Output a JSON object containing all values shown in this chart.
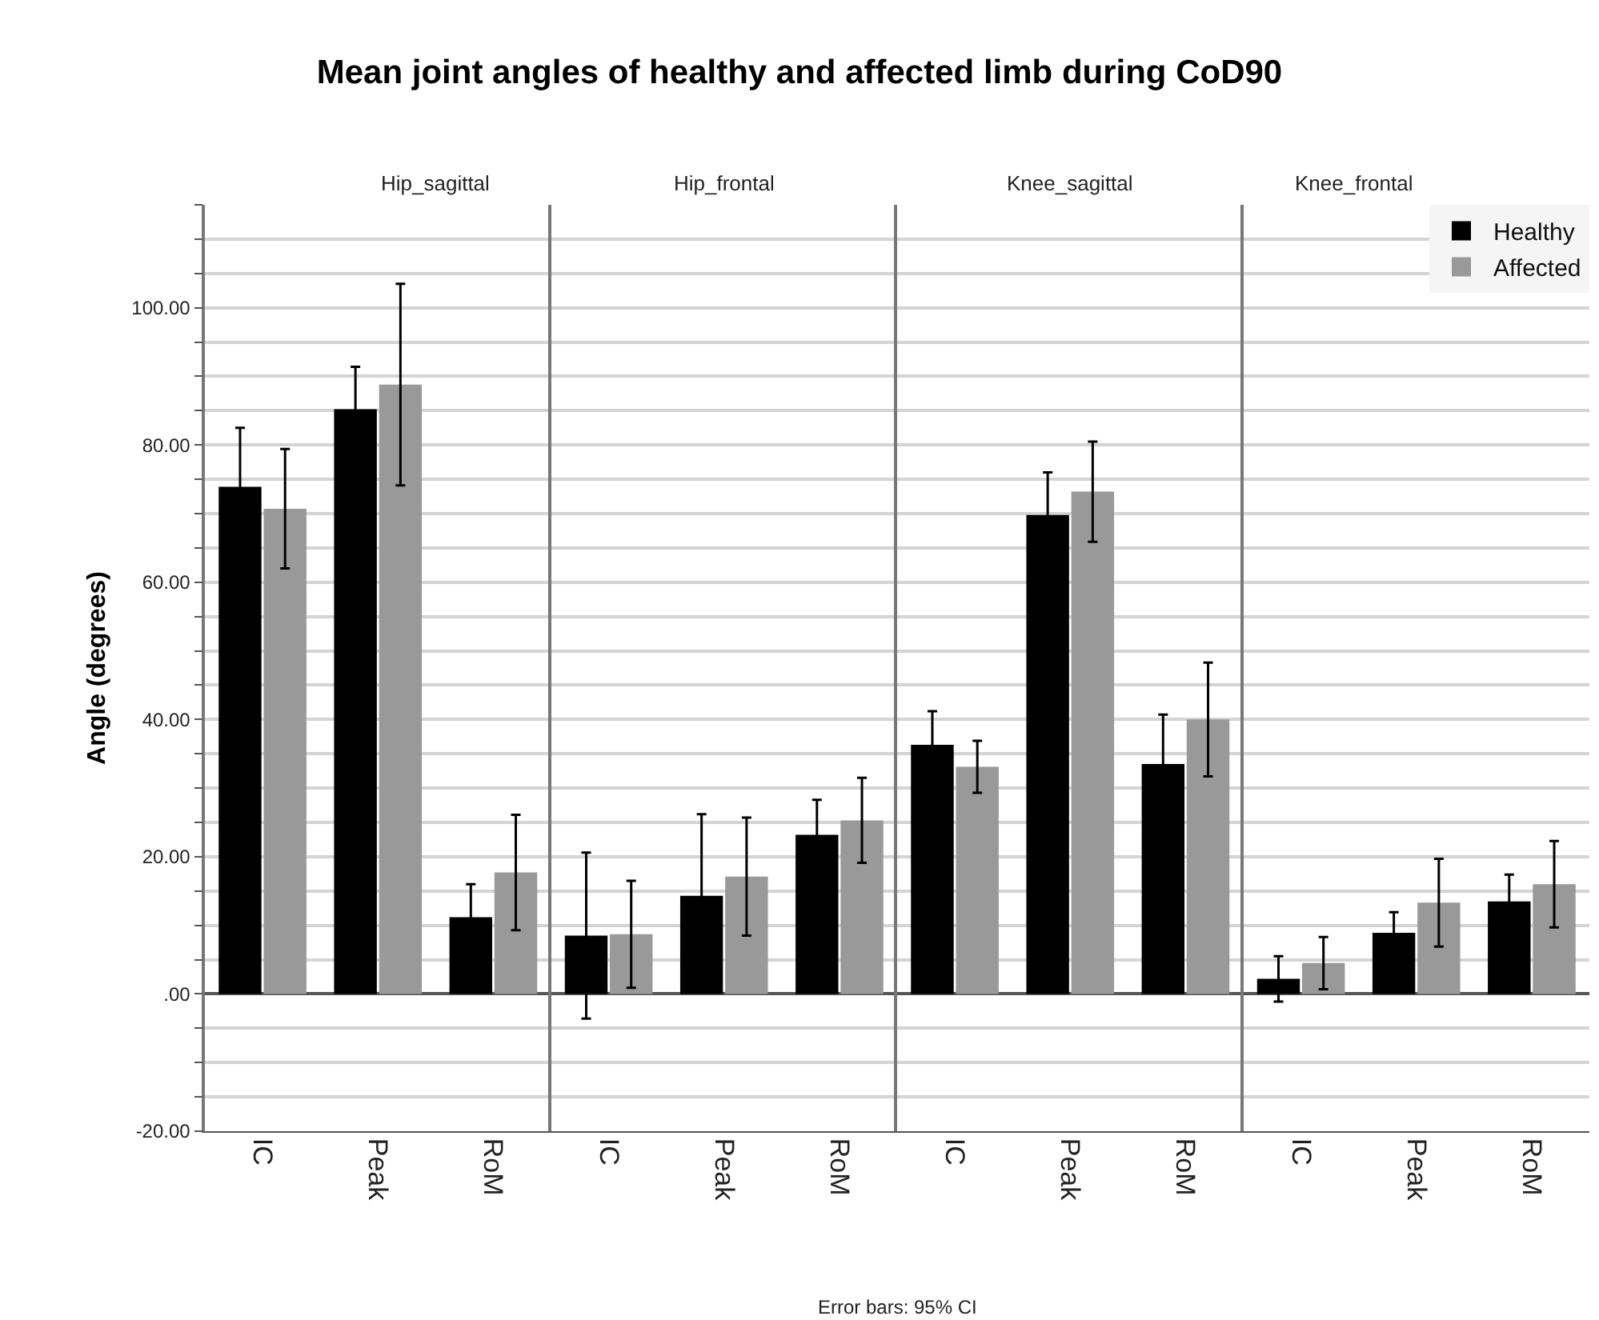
{
  "chart_data": [
    {
      "type": "bar",
      "title": "Mean joint angles of healthy and affected limb during CoD90",
      "subtitle": "Hip_sagittal",
      "ylabel": "Angle (degrees)",
      "categories": [
        "IC",
        "Peak",
        "RoM"
      ],
      "series": [
        {
          "color": "#000000",
          "values": [
            73.9,
            85.2,
            11.2
          ],
          "errors": [
            8.6,
            6.2,
            4.8
          ]
        },
        {
          "color": "#999999",
          "values": [
            70.7,
            88.8,
            17.7
          ],
          "errors": [
            8.7,
            14.7,
            8.4
          ]
        }
      ],
      "ylim": [
        -20,
        115
      ],
      "yticks": [
        {
          "value": -20,
          "label": "-20.00"
        },
        {
          "value": -15,
          "label": null
        },
        {
          "value": -10,
          "label": null
        },
        {
          "value": -5,
          "label": null
        },
        {
          "value": 0,
          "label": ".00"
        },
        {
          "value": 5,
          "label": null
        },
        {
          "value": 10,
          "label": null
        },
        {
          "value": 15,
          "label": null
        },
        {
          "value": 20,
          "label": "20.00"
        },
        {
          "value": 25,
          "label": null
        },
        {
          "value": 30,
          "label": null
        },
        {
          "value": 35,
          "label": null
        },
        {
          "value": 40,
          "label": "40.00"
        },
        {
          "value": 45,
          "label": null
        },
        {
          "value": 50,
          "label": null
        },
        {
          "value": 55,
          "label": null
        },
        {
          "value": 60,
          "label": "60.00"
        },
        {
          "value": 65,
          "label": null
        },
        {
          "value": 70,
          "label": null
        },
        {
          "value": 75,
          "label": null
        },
        {
          "value": 80,
          "label": "80.00"
        },
        {
          "value": 85,
          "label": null
        },
        {
          "value": 90,
          "label": null
        },
        {
          "value": 95,
          "label": null
        },
        {
          "value": 100,
          "label": "100.00"
        },
        {
          "value": 105,
          "label": null
        },
        {
          "value": 110,
          "label": null
        },
        {
          "value": 115,
          "label": null
        }
      ],
      "grid": "y",
      "annotations": [
        "Error bars: 95% CI"
      ]
    },
    {
      "type": "bar",
      "subtitle": "Hip_frontal",
      "categories": [
        "IC",
        "Peak",
        "RoM"
      ],
      "series": [
        {
          "color": "#000000",
          "values": [
            8.5,
            14.3,
            23.2
          ],
          "errors": [
            12.1,
            11.9,
            5.1
          ]
        },
        {
          "color": "#999999",
          "values": [
            8.7,
            17.1,
            25.3
          ],
          "errors": [
            7.8,
            8.6,
            6.2
          ]
        }
      ],
      "ylim": [
        -20,
        115
      ],
      "grid": "y",
      "tick_labels": "x"
    },
    {
      "type": "bar",
      "subtitle": "Knee_sagittal",
      "categories": [
        "IC",
        "Peak",
        "RoM"
      ],
      "series": [
        {
          "color": "#000000",
          "values": [
            36.3,
            69.8,
            33.5
          ],
          "errors": [
            4.9,
            6.2,
            7.2
          ]
        },
        {
          "color": "#999999",
          "values": [
            33.1,
            73.2,
            40.0
          ],
          "errors": [
            3.8,
            7.3,
            8.3
          ]
        }
      ],
      "ylim": [
        -20,
        115
      ],
      "grid": "y",
      "tick_labels": "x"
    },
    {
      "type": "bar",
      "subtitle": "Knee_frontal",
      "categories": [
        "IC",
        "Peak",
        "RoM"
      ],
      "series": [
        {
          "name": "Healthy",
          "color": "#000000",
          "values": [
            2.2,
            8.9,
            13.5
          ],
          "errors": [
            3.3,
            3.0,
            3.9
          ]
        },
        {
          "name": "Affected",
          "color": "#999999",
          "values": [
            4.5,
            13.3,
            16.0
          ],
          "errors": [
            3.8,
            6.4,
            6.3
          ]
        }
      ],
      "ylim": [
        -20,
        115
      ],
      "grid": "y",
      "tick_labels": "x",
      "legend": "top right"
    }
  ]
}
